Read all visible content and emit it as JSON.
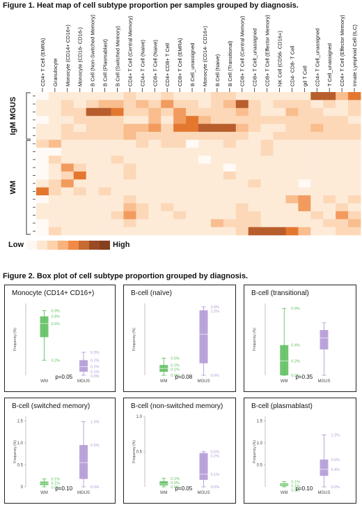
{
  "figure1": {
    "title": "Figure 1. Heat map of cell subtype proportion per samples grouped by diagnosis.",
    "legend": {
      "low_label": "Low",
      "high_label": "High",
      "colors": [
        "#fef8f2",
        "#fde7d0",
        "#fbd2ac",
        "#f8b27c",
        "#f08a45",
        "#c86a33",
        "#9b4a25",
        "#86401e"
      ]
    },
    "colors": [
      "#fffaf5",
      "#fdebd8",
      "#fcd8b8",
      "#f9bd8e",
      "#f29b5e",
      "#e47730",
      "#b85d2c",
      "#8e4320"
    ],
    "chart_data": {
      "type": "heatmap",
      "columns": [
        "CD4+ T Cell (EMRA)",
        "Granulocyte",
        "Monocyte (CD14+ CD16+)",
        "Monocyte (CD16- CD16-)",
        "B Cell (Non-Switched Memory)",
        "B Cell (Plasmablast)",
        "B Cell (Switched Memory)",
        "CD4+ T Cell (Central Memory)",
        "CD4+ T Cell (Naive)",
        "CD8+ T Cell (Naive)",
        "CD4+ CD8+ T Cell",
        "CD8+ T Cell (EMRA)",
        "B Cell_unassigned",
        "Monocyte (CD14- CD16+)",
        "B Cell (Naive)",
        "B Cell (Transitional)",
        "CD8+ T Cell (Central Memory)",
        "CD8+ T Cell_unassigned",
        "CD8+ T Cell (Effector Memory)",
        "NK Cell (CD56- CD16+)",
        "CD4- CD8- T Cell",
        "gd T Cell",
        "CD4+ T Cell_unassigned",
        "T Cell_unassigned",
        "CD4+ T Cell (Effector Memory)",
        "Innate Lymphoid Cell (ILC)"
      ],
      "row_groups": [
        {
          "label": "IgM MGUS",
          "rows": 6
        },
        {
          "label": "WM",
          "rows": 12
        }
      ],
      "values": [
        [
          0,
          1,
          1,
          1,
          1,
          1,
          1,
          2,
          1,
          1,
          2,
          1,
          1,
          1,
          2,
          2,
          1,
          1,
          1,
          1,
          1,
          1,
          6,
          6,
          3,
          5
        ],
        [
          1,
          1,
          2,
          1,
          2,
          3,
          3,
          2,
          3,
          2,
          4,
          2,
          2,
          1,
          2,
          3,
          6,
          2,
          1,
          2,
          2,
          2,
          1,
          2,
          1,
          2
        ],
        [
          1,
          1,
          2,
          2,
          6,
          6,
          5,
          2,
          2,
          3,
          2,
          4,
          2,
          2,
          2,
          2,
          3,
          2,
          1,
          1,
          3,
          2,
          2,
          1,
          1,
          2
        ],
        [
          0,
          1,
          1,
          2,
          2,
          2,
          2,
          1,
          1,
          3,
          1,
          4,
          5,
          3,
          2,
          2,
          2,
          2,
          2,
          2,
          2,
          2,
          2,
          2,
          2,
          1
        ],
        [
          1,
          1,
          2,
          1,
          2,
          2,
          2,
          3,
          3,
          4,
          2,
          5,
          5,
          6,
          6,
          6,
          3,
          2,
          1,
          1,
          2,
          2,
          3,
          2,
          2,
          2
        ],
        [
          1,
          1,
          2,
          2,
          2,
          2,
          2,
          3,
          2,
          2,
          2,
          2,
          2,
          2,
          2,
          2,
          2,
          1,
          1,
          2,
          2,
          2,
          2,
          2,
          2,
          2
        ],
        [
          2,
          3,
          1,
          1,
          1,
          1,
          1,
          1,
          2,
          1,
          2,
          2,
          0,
          1,
          1,
          2,
          1,
          1,
          2,
          1,
          1,
          1,
          1,
          1,
          1,
          1
        ],
        [
          0,
          0,
          1,
          1,
          1,
          1,
          1,
          1,
          1,
          1,
          1,
          1,
          1,
          1,
          1,
          1,
          1,
          1,
          2,
          1,
          1,
          1,
          1,
          1,
          1,
          1
        ],
        [
          0,
          2,
          1,
          1,
          1,
          1,
          2,
          1,
          1,
          1,
          1,
          1,
          1,
          0,
          1,
          1,
          1,
          1,
          1,
          1,
          1,
          1,
          1,
          1,
          1,
          1
        ],
        [
          0,
          1,
          4,
          2,
          1,
          1,
          1,
          2,
          1,
          1,
          1,
          1,
          1,
          1,
          1,
          0,
          1,
          1,
          1,
          1,
          1,
          1,
          1,
          1,
          1,
          1
        ],
        [
          0,
          1,
          2,
          5,
          1,
          1,
          1,
          2,
          1,
          1,
          1,
          1,
          1,
          1,
          1,
          2,
          1,
          1,
          1,
          1,
          1,
          1,
          1,
          1,
          1,
          1
        ],
        [
          1,
          2,
          4,
          1,
          1,
          1,
          1,
          1,
          1,
          1,
          1,
          1,
          1,
          1,
          1,
          1,
          1,
          2,
          1,
          1,
          1,
          0,
          1,
          1,
          1,
          1
        ],
        [
          5,
          2,
          1,
          2,
          1,
          2,
          1,
          1,
          1,
          1,
          1,
          1,
          1,
          1,
          1,
          1,
          1,
          1,
          1,
          1,
          1,
          1,
          1,
          1,
          1,
          1
        ],
        [
          0,
          1,
          1,
          1,
          1,
          1,
          1,
          2,
          1,
          1,
          1,
          1,
          1,
          1,
          1,
          1,
          1,
          1,
          1,
          1,
          3,
          4,
          1,
          2,
          1,
          2
        ],
        [
          1,
          1,
          1,
          1,
          1,
          1,
          1,
          3,
          2,
          1,
          2,
          1,
          1,
          1,
          1,
          1,
          2,
          1,
          1,
          1,
          1,
          4,
          1,
          1,
          2,
          1
        ],
        [
          1,
          1,
          1,
          1,
          1,
          1,
          2,
          4,
          2,
          1,
          1,
          2,
          1,
          1,
          1,
          1,
          2,
          2,
          1,
          1,
          1,
          1,
          2,
          1,
          4,
          2
        ],
        [
          0,
          1,
          1,
          1,
          1,
          1,
          1,
          2,
          1,
          1,
          1,
          1,
          1,
          1,
          3,
          2,
          2,
          2,
          1,
          1,
          1,
          1,
          1,
          2,
          2,
          3
        ],
        [
          0,
          2,
          1,
          1,
          1,
          1,
          1,
          1,
          1,
          1,
          1,
          1,
          1,
          1,
          1,
          1,
          2,
          6,
          6,
          6,
          5,
          3,
          1,
          1,
          2,
          2
        ]
      ]
    }
  },
  "figure2": {
    "title": "Figure 2. Box plot of cell subtype proportion grouped by diagnosis.",
    "ylabel": "Frequency (%)",
    "panels": [
      {
        "title": "Monocyte (CD14+ CD16+)",
        "pvalue": "p=0.05",
        "chart_data": {
          "type": "box",
          "categories": [
            "WM",
            "MGUS"
          ],
          "ylim": [
            0,
            1.0
          ],
          "yticks": [],
          "ylabel": "Frequency (%)",
          "series": [
            {
              "group": "WM",
              "color": "#61c061",
              "min": 0.21,
              "q1": 0.53,
              "median": 0.72,
              "q3": 0.82,
              "max": 0.9,
              "labels": [
                "0.9%",
                "0.8%",
                "0.5%",
                "0.2%"
              ]
            },
            {
              "group": "MGUS",
              "color": "#b49ad6",
              "min": 0.0,
              "q1": 0.05,
              "median": 0.12,
              "q3": 0.21,
              "max": 0.32,
              "labels": [
                "0.3%",
                "0.2%",
                "0.2%",
                "0.1%",
                "0.0%"
              ]
            }
          ]
        }
      },
      {
        "title": "B-cell (naïve)",
        "pvalue": "p=0.08",
        "chart_data": {
          "type": "box",
          "categories": [
            "WM",
            "MGUS"
          ],
          "ylim": [
            0,
            2.1
          ],
          "yticks": [],
          "ylabel": "Frequency (%)",
          "series": [
            {
              "group": "WM",
              "color": "#61c061",
              "min": 0.0,
              "q1": 0.1,
              "median": 0.2,
              "q3": 0.3,
              "max": 0.5,
              "labels": [
                "0.5%",
                "0.2%",
                "0.1%",
                "0.0%"
              ]
            },
            {
              "group": "MGUS",
              "color": "#b49ad6",
              "min": 0.0,
              "q1": 0.35,
              "median": 1.2,
              "q3": 1.9,
              "max": 2.0,
              "labels": [
                "2.0%",
                "1.2%",
                "0.0%"
              ]
            }
          ]
        }
      },
      {
        "title": "B-cell (transitional)",
        "pvalue": "p=0.35",
        "chart_data": {
          "type": "box",
          "categories": [
            "WM",
            "MGUS"
          ],
          "ylim": [
            0,
            1.0
          ],
          "yticks": [],
          "ylabel": "Frequency (%)",
          "series": [
            {
              "group": "WM",
              "color": "#61c061",
              "min": 0.0,
              "q1": 0.0,
              "median": 0.2,
              "q3": 0.42,
              "max": 0.93,
              "labels": [
                "0.9%",
                "0.4%",
                "0.2%",
                "0.0%"
              ]
            },
            {
              "group": "MGUS",
              "color": "#b49ad6",
              "min": 0.0,
              "q1": 0.36,
              "median": 0.52,
              "q3": 0.63,
              "max": 0.73,
              "labels": []
            }
          ]
        }
      },
      {
        "title": "B-cell (switched memory)",
        "pvalue": "p=0.10",
        "chart_data": {
          "type": "box",
          "categories": [
            "WM",
            "MGUS"
          ],
          "ylim": [
            0,
            1.6
          ],
          "yticks": [
            "1.5",
            "1.0",
            "0.5",
            "0"
          ],
          "ylabel": "Frequency (%)",
          "series": [
            {
              "group": "WM",
              "color": "#61c061",
              "min": 0.0,
              "q1": 0.04,
              "median": 0.08,
              "q3": 0.12,
              "max": 0.18,
              "labels": [
                "0.1%",
                "0.1%",
                "0.0%"
              ]
            },
            {
              "group": "MGUS",
              "color": "#b49ad6",
              "min": 0.0,
              "q1": 0.18,
              "median": 0.55,
              "q3": 0.95,
              "max": 1.48,
              "labels": [
                "1.5%",
                "0.5%",
                "0.0%"
              ]
            }
          ]
        }
      },
      {
        "title": "B-cell (non-switched memory)",
        "pvalue": "p=0.05",
        "chart_data": {
          "type": "box",
          "categories": [
            "WM",
            "MGUS"
          ],
          "ylim": [
            0,
            1.0
          ],
          "yticks": [
            "1.0",
            "0.5"
          ],
          "ylabel": "Frequency (%)",
          "series": [
            {
              "group": "WM",
              "color": "#61c061",
              "min": 0.0,
              "q1": 0.02,
              "median": 0.04,
              "q3": 0.08,
              "max": 0.12,
              "labels": [
                "0.1%",
                "0.0%",
                "0.0%"
              ]
            },
            {
              "group": "MGUS",
              "color": "#b49ad6",
              "min": 0.0,
              "q1": 0.1,
              "median": 0.18,
              "q3": 0.48,
              "max": 0.5,
              "labels": [
                "0.5%",
                "0.2%",
                "0.1%",
                "0.0%"
              ]
            }
          ]
        }
      },
      {
        "title": "B-cell (plasmablast)",
        "pvalue": "p=0.10",
        "chart_data": {
          "type": "box",
          "categories": [
            "WM",
            "MGUS"
          ],
          "ylim": [
            0,
            1.6
          ],
          "yticks": [
            "1.5",
            "1.0",
            "0.5"
          ],
          "ylabel": "Frequency (%)",
          "series": [
            {
              "group": "WM",
              "color": "#61c061",
              "min": 0.0,
              "q1": 0.02,
              "median": 0.05,
              "q3": 0.08,
              "max": 0.12,
              "labels": [
                "0.1%",
                "0.1%",
                "0.0%"
              ]
            },
            {
              "group": "MGUS",
              "color": "#b49ad6",
              "min": 0.0,
              "q1": 0.25,
              "median": 0.4,
              "q3": 0.62,
              "max": 1.18,
              "labels": [
                "1.2%",
                "0.6%",
                "0.4%",
                "0.0%"
              ]
            }
          ]
        }
      }
    ]
  }
}
